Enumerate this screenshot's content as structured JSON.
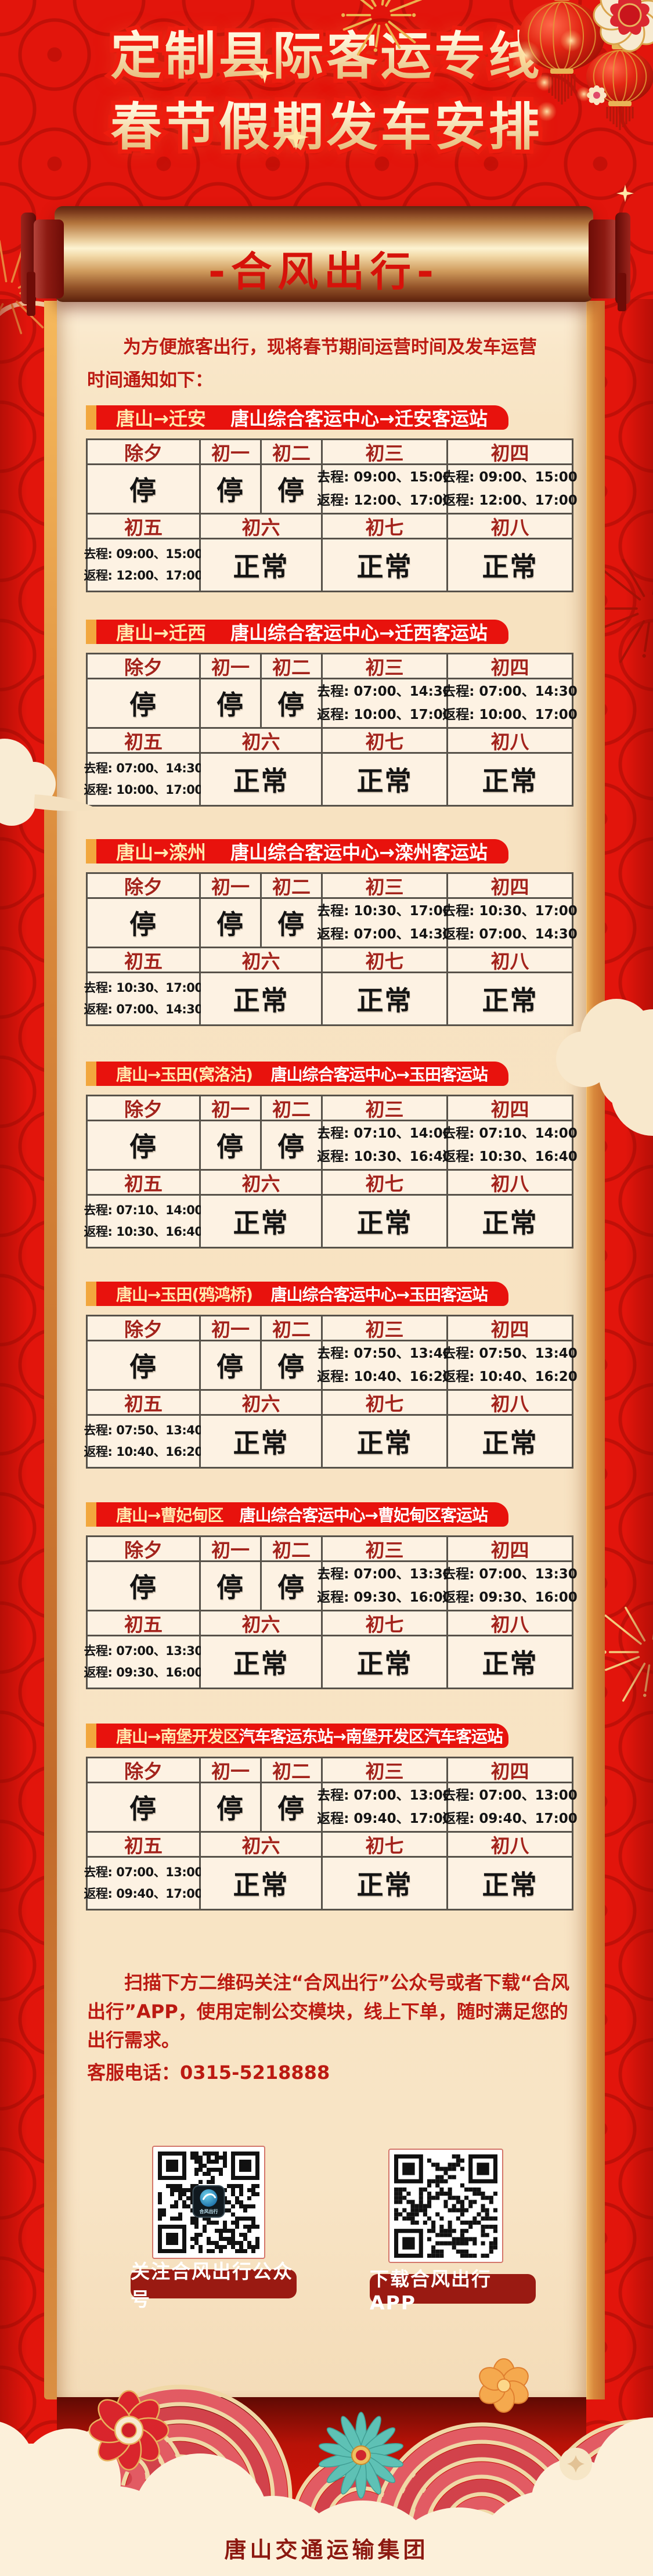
{
  "header": {
    "title_line1": "定制县际客运专线",
    "title_line2": "春节假期发车安排",
    "scroll_brand": "-合风出行-"
  },
  "intro": "为方便旅客出行，现将春节期间运营时间及发车运营时间通知如下：",
  "schedule": {
    "days_top": [
      "除夕",
      "初一",
      "初二",
      "初三",
      "初四"
    ],
    "days_bottom": [
      "初五",
      "初六",
      "初七",
      "初八"
    ],
    "stop": "停",
    "normal": "正常",
    "go_prefix": "去程: ",
    "back_prefix": "返程: ",
    "tables": [
      {
        "route": "唐山→迁安",
        "station": "唐山综合客运中心→迁安客运站",
        "go": "09:00、15:00",
        "back": "12:00、17:00"
      },
      {
        "route": "唐山→迁西",
        "station": "唐山综合客运中心→迁西客运站",
        "go": "07:00、14:30",
        "back": "10:00、17:00"
      },
      {
        "route": "唐山→滦州",
        "station": "唐山综合客运中心→滦州客运站",
        "go": "10:30、17:00",
        "back": "07:00、14:30"
      },
      {
        "route": "唐山→玉田(窝洛沽)",
        "station": "唐山综合客运中心→玉田客运站",
        "go": "07:10、14:00",
        "back": "10:30、16:40"
      },
      {
        "route": "唐山→玉田(鸦鸿桥)",
        "station": "唐山综合客运中心→玉田客运站",
        "go": "07:50、13:40",
        "back": "10:40、16:20"
      },
      {
        "route": "唐山→曹妃甸区",
        "station": "唐山综合客运中心→曹妃甸区客运站",
        "go": "07:00、13:30",
        "back": "09:30、16:00"
      },
      {
        "route": "唐山→南堡开发区",
        "station": "汽车客运东站→南堡开发区汽车客运站",
        "go": "07:00、13:00",
        "back": "09:40、17:00"
      }
    ]
  },
  "notice": {
    "text": "扫描下方二维码关注“合风出行”公众号或者下载“合风出行”APP，使用定制公交模块，线上下单，随时满足您的出行需求。",
    "phone": "客服电话：0315-5218888"
  },
  "qr": {
    "left_label": "关注合风出行公众号",
    "right_label": "下载合风出行APP",
    "logo_text": "合风出行"
  },
  "footer": {
    "company": "唐山交通运输集团"
  },
  "colors": {
    "background_red": "#e2150c",
    "bar_red": "#e8120d",
    "bar_accent_orange": "#f2a73e",
    "paper": "#f8e4c5",
    "table_cell": "#fdf2e3",
    "table_border": "#57524a",
    "day_text": "#a3231c",
    "body_text": "#bc1a12",
    "route_text_gold": "#ffeaae",
    "scroll_brand_red": "#d6120a",
    "qr_label_bg": "#9a1a12",
    "company_text": "#8c1810",
    "roller_gold": "#f2d9a8",
    "teal_flower": "#5ec1b5"
  }
}
